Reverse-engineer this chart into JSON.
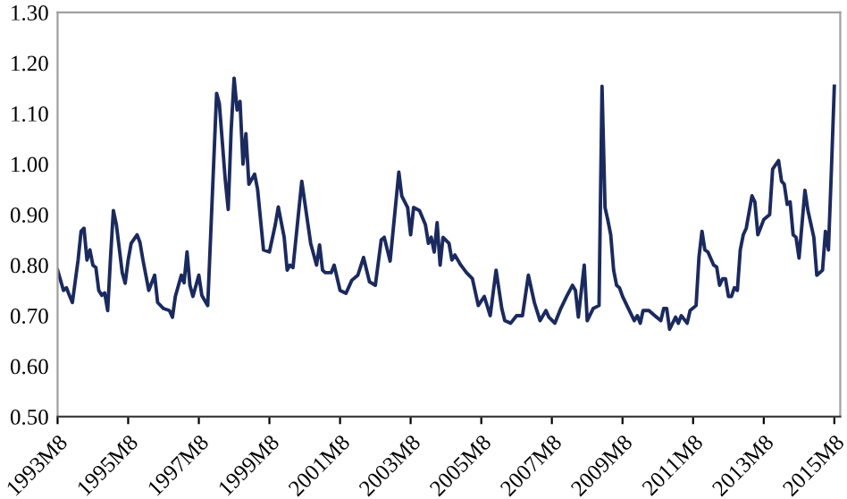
{
  "chart_data": {
    "type": "line",
    "x": [
      "1993-08",
      "1993-10",
      "1993-11",
      "1993-12",
      "1994-01",
      "1994-03",
      "1994-04",
      "1994-05",
      "1994-06",
      "1994-07",
      "1994-08",
      "1994-09",
      "1994-10",
      "1994-11",
      "1994-12",
      "1995-01",
      "1995-02",
      "1995-03",
      "1995-04",
      "1995-06",
      "1995-07",
      "1995-08",
      "1995-09",
      "1995-11",
      "1995-12",
      "1996-01",
      "1996-03",
      "1996-05",
      "1996-06",
      "1996-08",
      "1996-10",
      "1996-11",
      "1996-12",
      "1997-02",
      "1997-03",
      "1997-04",
      "1997-05",
      "1997-06",
      "1997-08",
      "1997-09",
      "1997-10",
      "1997-11",
      "1998-02",
      "1998-03",
      "1998-05",
      "1998-06",
      "1998-07",
      "1998-08",
      "1998-09",
      "1998-10",
      "1998-11",
      "1998-12",
      "1999-01",
      "1999-03",
      "1999-04",
      "1999-06",
      "1999-08",
      "1999-10",
      "1999-11",
      "2000-01",
      "2000-02",
      "2000-03",
      "2000-04",
      "2000-07",
      "2000-10",
      "2000-12",
      "2001-01",
      "2001-02",
      "2001-03",
      "2001-05",
      "2001-06",
      "2001-08",
      "2001-10",
      "2001-12",
      "2002-02",
      "2002-04",
      "2002-06",
      "2002-08",
      "2002-10",
      "2002-11",
      "2003-01",
      "2003-04",
      "2003-05",
      "2003-07",
      "2003-08",
      "2003-09",
      "2003-11",
      "2004-01",
      "2004-02",
      "2004-03",
      "2004-04",
      "2004-05",
      "2004-06",
      "2004-07",
      "2004-09",
      "2004-10",
      "2004-11",
      "2005-01",
      "2005-03",
      "2005-05",
      "2005-07",
      "2005-09",
      "2005-11",
      "2006-01",
      "2006-03",
      "2006-04",
      "2006-06",
      "2006-08",
      "2006-10",
      "2006-12",
      "2007-02",
      "2007-04",
      "2007-06",
      "2007-07",
      "2007-09",
      "2007-11",
      "2008-01",
      "2008-03",
      "2008-04",
      "2008-05",
      "2008-07",
      "2008-08",
      "2008-10",
      "2008-12",
      "2009-01",
      "2009-02",
      "2009-03",
      "2009-04",
      "2009-05",
      "2009-06",
      "2009-07",
      "2009-08",
      "2009-10",
      "2009-12",
      "2010-01",
      "2010-02",
      "2010-03",
      "2010-05",
      "2010-07",
      "2010-09",
      "2010-10",
      "2010-11",
      "2010-12",
      "2011-02",
      "2011-03",
      "2011-04",
      "2011-06",
      "2011-07",
      "2011-09",
      "2011-10",
      "2011-11",
      "2011-12",
      "2012-01",
      "2012-03",
      "2012-04",
      "2012-05",
      "2012-06",
      "2012-07",
      "2012-08",
      "2012-09",
      "2012-10",
      "2012-11",
      "2012-12",
      "2013-01",
      "2013-02",
      "2013-04",
      "2013-05",
      "2013-06",
      "2013-08",
      "2013-10",
      "2013-11",
      "2014-01",
      "2014-02",
      "2014-03",
      "2014-04",
      "2014-05",
      "2014-06",
      "2014-07",
      "2014-08",
      "2014-10",
      "2014-11",
      "2015-01",
      "2015-02",
      "2015-04",
      "2015-05",
      "2015-06",
      "2015-07",
      "2015-08"
    ],
    "series": [
      {
        "color": "#1b2a5e",
        "values": [
          0.79,
          0.75,
          0.755,
          0.74,
          0.726,
          0.81,
          0.867,
          0.873,
          0.81,
          0.83,
          0.8,
          0.795,
          0.75,
          0.74,
          0.745,
          0.71,
          0.82,
          0.908,
          0.88,
          0.785,
          0.764,
          0.81,
          0.843,
          0.86,
          0.845,
          0.81,
          0.75,
          0.78,
          0.726,
          0.714,
          0.71,
          0.697,
          0.738,
          0.78,
          0.765,
          0.826,
          0.76,
          0.738,
          0.78,
          0.74,
          0.73,
          0.72,
          1.14,
          1.12,
          0.97,
          0.91,
          1.066,
          1.17,
          1.107,
          1.124,
          1.0,
          1.06,
          0.96,
          0.98,
          0.95,
          0.83,
          0.826,
          0.88,
          0.915,
          0.855,
          0.79,
          0.8,
          0.795,
          0.966,
          0.843,
          0.8,
          0.84,
          0.79,
          0.785,
          0.785,
          0.8,
          0.75,
          0.744,
          0.77,
          0.78,
          0.815,
          0.767,
          0.76,
          0.85,
          0.855,
          0.808,
          0.984,
          0.937,
          0.914,
          0.86,
          0.914,
          0.908,
          0.88,
          0.843,
          0.855,
          0.826,
          0.884,
          0.8,
          0.855,
          0.843,
          0.81,
          0.82,
          0.8,
          0.785,
          0.773,
          0.72,
          0.738,
          0.7,
          0.79,
          0.714,
          0.69,
          0.685,
          0.7,
          0.7,
          0.78,
          0.726,
          0.69,
          0.71,
          0.697,
          0.685,
          0.714,
          0.738,
          0.76,
          0.75,
          0.697,
          0.8,
          0.69,
          0.714,
          0.72,
          1.154,
          0.914,
          0.89,
          0.86,
          0.79,
          0.76,
          0.755,
          0.738,
          0.714,
          0.69,
          0.7,
          0.685,
          0.71,
          0.71,
          0.7,
          0.69,
          0.714,
          0.714,
          0.673,
          0.697,
          0.685,
          0.7,
          0.685,
          0.71,
          0.72,
          0.816,
          0.867,
          0.83,
          0.826,
          0.8,
          0.796,
          0.76,
          0.773,
          0.773,
          0.738,
          0.738,
          0.755,
          0.75,
          0.83,
          0.86,
          0.873,
          0.937,
          0.925,
          0.86,
          0.89,
          0.9,
          0.99,
          1.007,
          0.966,
          0.96,
          0.92,
          0.925,
          0.86,
          0.855,
          0.814,
          0.948,
          0.908,
          0.855,
          0.78,
          0.79,
          0.867,
          0.83,
          0.984,
          1.154
        ]
      }
    ],
    "xlim": [
      "1993-08",
      "2015-10"
    ],
    "xticks": [
      {
        "value": "1993-08",
        "label": "1993M8"
      },
      {
        "value": "1995-08",
        "label": "1995M8"
      },
      {
        "value": "1997-08",
        "label": "1997M8"
      },
      {
        "value": "1999-08",
        "label": "1999M8"
      },
      {
        "value": "2001-08",
        "label": "2001M8"
      },
      {
        "value": "2003-08",
        "label": "2003M8"
      },
      {
        "value": "2005-08",
        "label": "2005M8"
      },
      {
        "value": "2007-08",
        "label": "2007M8"
      },
      {
        "value": "2009-08",
        "label": "2009M8"
      },
      {
        "value": "2011-08",
        "label": "2011M8"
      },
      {
        "value": "2013-08",
        "label": "2013M8"
      },
      {
        "value": "2015-08",
        "label": "2015M8"
      }
    ],
    "ylim": [
      0.5,
      1.3
    ],
    "yticks": [
      {
        "value": 0.5,
        "label": "0.50"
      },
      {
        "value": 0.6,
        "label": "0.60"
      },
      {
        "value": 0.7,
        "label": "0.70"
      },
      {
        "value": 0.8,
        "label": "0.80"
      },
      {
        "value": 0.9,
        "label": "0.90"
      },
      {
        "value": 1.0,
        "label": "1.00"
      },
      {
        "value": 1.1,
        "label": "1.10"
      },
      {
        "value": 1.2,
        "label": "1.20"
      },
      {
        "value": 1.3,
        "label": "1.30"
      }
    ],
    "grid": false,
    "legend": false,
    "marker": "none",
    "line_style": "solid"
  }
}
